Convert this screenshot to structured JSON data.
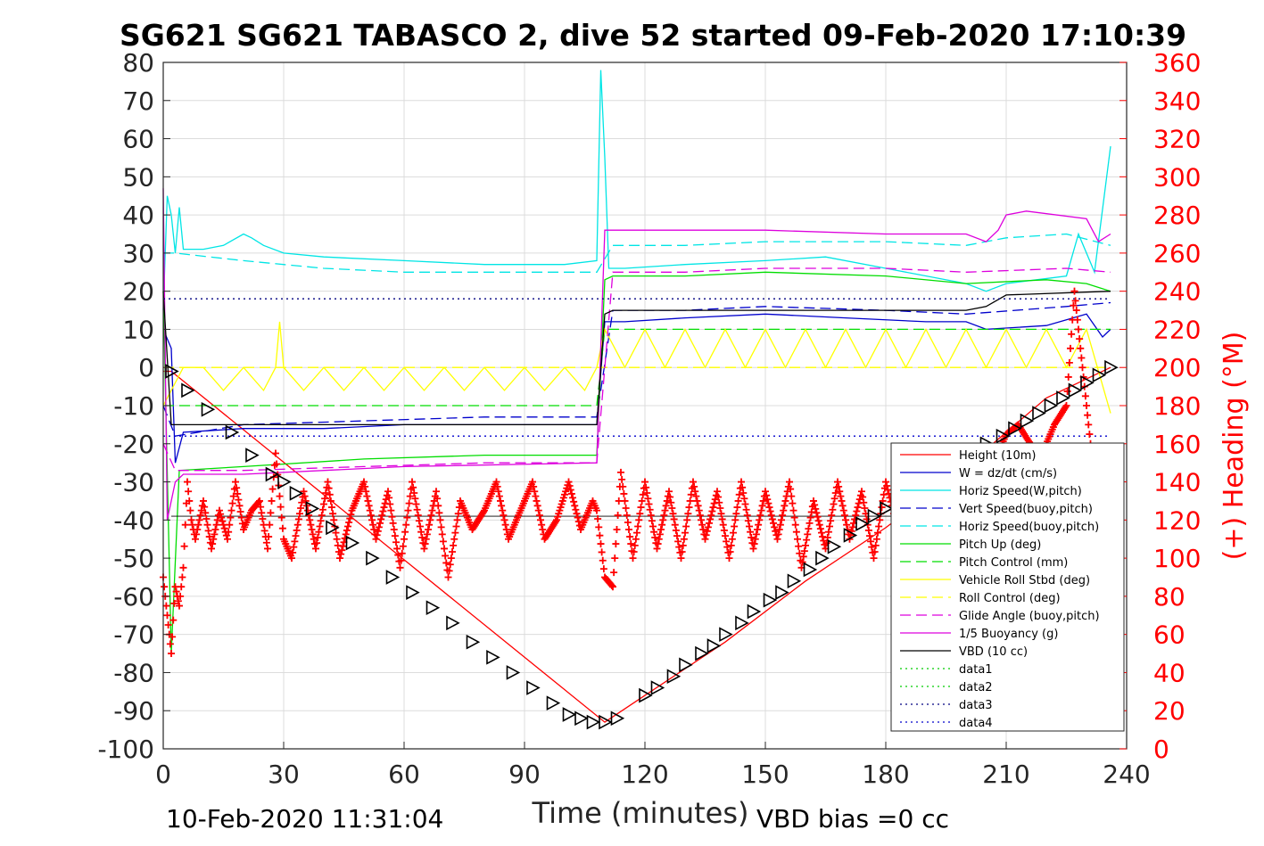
{
  "chart_data": {
    "type": "line",
    "title": "SG621 SG621 TABASCO 2, dive 52 started 09-Feb-2020 17:10:39",
    "xlabel": "Time (minutes)",
    "ylabel_right": "(+) Heading (°M)",
    "xlim": [
      0,
      240
    ],
    "ylim": [
      -100,
      80
    ],
    "ylim_right": [
      0,
      360
    ],
    "xticks": [
      "0",
      "30",
      "60",
      "90",
      "120",
      "150",
      "180",
      "210",
      "240"
    ],
    "yticks": [
      "80",
      "70",
      "60",
      "50",
      "40",
      "30",
      "20",
      "10",
      "0",
      "-10",
      "-20",
      "-30",
      "-40",
      "-50",
      "-60",
      "-70",
      "-80",
      "-90",
      "-100"
    ],
    "yticks_right": [
      "360",
      "340",
      "320",
      "300",
      "280",
      "260",
      "240",
      "220",
      "200",
      "180",
      "160",
      "140",
      "120",
      "100",
      "80",
      "60",
      "40",
      "20",
      "0"
    ],
    "grid": true,
    "legend_position": "bottom-right",
    "footer_left": "10-Feb-2020 11:31:04",
    "footer_right": "VBD bias =0 cc",
    "colors": {
      "height": "#ff0000",
      "w": "#0000cc",
      "horiz_w": "#00e5e5",
      "vert_buoy": "#0000cc",
      "horiz_buoy": "#00e5e5",
      "pitch": "#00dd00",
      "pitch_ctrl": "#00dd00",
      "roll": "#ffff00",
      "roll_ctrl": "#ffff00",
      "glide": "#dd00dd",
      "buoy": "#dd00dd",
      "vbd": "#000000",
      "data1": "#00cc00",
      "data2": "#00cc00",
      "data3": "#000080",
      "data4": "#0000cc",
      "heading": "#ff0000"
    },
    "series": [
      {
        "name": "Height (10m)",
        "key": "height",
        "dash": "",
        "x": [
          0,
          2,
          110,
          120,
          140,
          160,
          180,
          200,
          220,
          236
        ],
        "y": [
          -1,
          -1,
          -93,
          -86,
          -72,
          -56,
          -42,
          -26,
          -8,
          0
        ]
      },
      {
        "name": "W = dz/dt (cm/s)",
        "key": "w",
        "dash": "",
        "x": [
          0,
          2,
          3,
          5,
          20,
          40,
          60,
          80,
          100,
          108,
          110,
          115,
          130,
          150,
          170,
          190,
          200,
          205,
          220,
          230,
          234,
          236
        ],
        "y": [
          10,
          5,
          -25,
          -17,
          -16,
          -16,
          -15,
          -15,
          -15,
          -15,
          12,
          12,
          13,
          14,
          13,
          12,
          12,
          10,
          11,
          14,
          8,
          10
        ]
      },
      {
        "name": "Horiz Speed(W,pitch)",
        "key": "horiz_w",
        "dash": "",
        "x": [
          0,
          1,
          2,
          3,
          4,
          5,
          10,
          15,
          20,
          22,
          25,
          30,
          40,
          60,
          80,
          100,
          108,
          109,
          110,
          111,
          112,
          115,
          130,
          150,
          165,
          180,
          200,
          205,
          210,
          225,
          228,
          232,
          236
        ],
        "y": [
          15,
          45,
          40,
          30,
          42,
          31,
          31,
          32,
          35,
          34,
          32,
          30,
          29,
          28,
          27,
          27,
          28,
          78,
          55,
          26,
          26,
          26,
          27,
          28,
          29,
          26,
          22,
          20,
          22,
          24,
          35,
          25,
          58
        ]
      },
      {
        "name": "Vert Speed(buoy,pitch)",
        "key": "vert_buoy",
        "dash": "12 6",
        "x": [
          0,
          3,
          20,
          50,
          80,
          108,
          112,
          130,
          150,
          180,
          200,
          225,
          236
        ],
        "y": [
          -10,
          -18,
          -15,
          -14,
          -13,
          -13,
          15,
          15,
          16,
          15,
          14,
          16,
          17
        ]
      },
      {
        "name": "Horiz Speed(buoy,pitch)",
        "key": "horiz_buoy",
        "dash": "12 6",
        "x": [
          0,
          3,
          20,
          40,
          60,
          80,
          108,
          112,
          130,
          150,
          180,
          200,
          210,
          225,
          236
        ],
        "y": [
          30,
          30,
          28,
          26,
          25,
          25,
          25,
          32,
          32,
          33,
          33,
          32,
          34,
          35,
          32
        ]
      },
      {
        "name": "Pitch Up (deg)",
        "key": "pitch",
        "dash": "",
        "x": [
          0,
          2,
          4,
          20,
          50,
          80,
          108,
          110,
          112,
          130,
          150,
          180,
          200,
          220,
          230,
          236
        ],
        "y": [
          20,
          -75,
          -27,
          -26,
          -24,
          -23,
          -23,
          23,
          24,
          24,
          25,
          24,
          22,
          23,
          22,
          20
        ]
      },
      {
        "name": "Pitch Control (mm)",
        "key": "pitch_ctrl",
        "dash": "12 6",
        "x": [
          0,
          3,
          108,
          110,
          236
        ],
        "y": [
          -10,
          -10,
          -10,
          10,
          10
        ]
      },
      {
        "name": "Vehicle Roll Stbd (deg)",
        "key": "roll",
        "dash": "",
        "x": [
          0,
          5,
          10,
          15,
          20,
          25,
          28,
          29,
          30,
          35,
          40,
          45,
          50,
          55,
          60,
          65,
          70,
          75,
          80,
          85,
          90,
          95,
          100,
          105,
          108,
          110,
          115,
          120,
          125,
          130,
          135,
          140,
          145,
          150,
          155,
          160,
          165,
          170,
          175,
          180,
          185,
          190,
          195,
          200,
          205,
          210,
          215,
          220,
          225,
          230,
          236
        ],
        "y": [
          -10,
          0,
          0,
          -6,
          0,
          -6,
          0,
          12,
          0,
          -6,
          0,
          -6,
          0,
          -6,
          0,
          -6,
          0,
          -6,
          0,
          -6,
          0,
          -6,
          0,
          -6,
          0,
          10,
          0,
          10,
          0,
          10,
          0,
          10,
          0,
          10,
          0,
          10,
          0,
          10,
          0,
          10,
          0,
          10,
          0,
          10,
          0,
          10,
          0,
          10,
          0,
          10,
          -12
        ]
      },
      {
        "name": "Roll Control (deg)",
        "key": "roll_ctrl",
        "dash": "12 6",
        "x": [
          0,
          3,
          236
        ],
        "y": [
          0,
          0,
          0
        ]
      },
      {
        "name": "Glide Angle (buoy,pitch)",
        "key": "glide",
        "dash": "12 6",
        "x": [
          0,
          3,
          20,
          50,
          80,
          108,
          112,
          130,
          150,
          180,
          200,
          225,
          236
        ],
        "y": [
          -20,
          -27,
          -27,
          -26,
          -25,
          -25,
          25,
          25,
          26,
          26,
          25,
          26,
          25
        ]
      },
      {
        "name": "1/5 Buoyancy (g)",
        "key": "buoy",
        "dash": "",
        "x": [
          0,
          1,
          3,
          5,
          20,
          60,
          108,
          110,
          112,
          130,
          150,
          180,
          200,
          205,
          208,
          210,
          215,
          230,
          233,
          236
        ],
        "y": [
          47,
          -40,
          -30,
          -28,
          -28,
          -26,
          -25,
          36,
          36,
          36,
          36,
          35,
          35,
          33,
          36,
          40,
          41,
          39,
          33,
          35
        ]
      },
      {
        "name": "VBD (10 cc)",
        "key": "vbd",
        "dash": "",
        "x": [
          0,
          2,
          5,
          108,
          110,
          112,
          200,
          205,
          210,
          236
        ],
        "y": [
          20,
          -15,
          -15,
          -15,
          14,
          15,
          15,
          16,
          19,
          20
        ]
      },
      {
        "name": "data1",
        "key": "data1",
        "dash": "2 4",
        "x": [],
        "y": []
      },
      {
        "name": "data2",
        "key": "data2",
        "dash": "2 4",
        "x": [],
        "y": []
      },
      {
        "name": "data3",
        "key": "data3",
        "dash": "2 4",
        "x": [
          0,
          236
        ],
        "y": [
          18,
          18
        ]
      },
      {
        "name": "data4",
        "key": "data4",
        "dash": "2 4",
        "x": [
          0,
          236
        ],
        "y": [
          -18,
          -18
        ]
      }
    ],
    "vbd_step": {
      "x": [
        2,
        236
      ],
      "y": [
        -39,
        -39
      ]
    },
    "heading": {
      "name": "heading",
      "x": [
        0,
        1,
        2,
        3,
        4,
        5,
        6,
        7,
        8,
        10,
        12,
        14,
        16,
        18,
        20,
        22,
        24,
        26,
        28,
        30,
        32,
        35,
        38,
        41,
        44,
        47,
        50,
        53,
        56,
        59,
        62,
        65,
        68,
        71,
        74,
        77,
        80,
        83,
        86,
        89,
        92,
        95,
        98,
        101,
        104,
        107,
        108,
        110,
        112,
        114,
        117,
        120,
        123,
        126,
        129,
        132,
        135,
        138,
        141,
        144,
        147,
        150,
        153,
        156,
        159,
        162,
        165,
        168,
        171,
        174,
        177,
        180,
        183,
        186,
        189,
        192,
        195,
        198,
        201,
        204,
        207,
        210,
        213,
        216,
        219,
        222,
        225,
        227,
        229,
        231,
        233,
        235,
        236
      ],
      "y": [
        90,
        70,
        50,
        85,
        75,
        95,
        140,
        120,
        110,
        130,
        105,
        125,
        110,
        140,
        115,
        125,
        130,
        105,
        155,
        110,
        100,
        135,
        105,
        140,
        100,
        125,
        140,
        110,
        135,
        95,
        140,
        105,
        135,
        90,
        130,
        115,
        125,
        140,
        110,
        125,
        140,
        110,
        120,
        140,
        115,
        130,
        125,
        90,
        85,
        145,
        100,
        140,
        105,
        135,
        100,
        140,
        110,
        135,
        100,
        140,
        105,
        135,
        110,
        140,
        95,
        130,
        105,
        140,
        110,
        135,
        100,
        140,
        115,
        125,
        135,
        110,
        140,
        115,
        130,
        140,
        150,
        165,
        170,
        160,
        155,
        170,
        180,
        240,
        200,
        160,
        130,
        150,
        140
      ]
    },
    "markers": {
      "x": [
        2,
        6,
        11,
        17,
        22,
        27,
        30,
        33,
        37,
        42,
        47,
        52,
        57,
        62,
        67,
        72,
        77,
        82,
        87,
        92,
        97,
        101,
        104,
        107,
        110,
        113,
        120,
        123,
        127,
        130,
        134,
        137,
        140,
        144,
        147,
        151,
        154,
        157,
        161,
        164,
        167,
        171,
        174,
        177,
        180,
        205,
        209,
        212,
        215,
        218,
        221,
        224,
        227,
        230,
        233,
        236
      ],
      "y": [
        -1,
        -6,
        -11,
        -17,
        -23,
        -28,
        -30,
        -33,
        -37,
        -42,
        -46,
        -50,
        -55,
        -59,
        -63,
        -67,
        -72,
        -76,
        -80,
        -84,
        -88,
        -91,
        -92,
        -93,
        -93,
        -92,
        -86,
        -84,
        -81,
        -78,
        -75,
        -73,
        -70,
        -67,
        -64,
        -61,
        -59,
        -56,
        -53,
        -50,
        -47,
        -44,
        -41,
        -39,
        -37,
        -20,
        -18,
        -16,
        -14,
        -12,
        -10,
        -8,
        -6,
        -4,
        -2,
        0
      ]
    }
  }
}
